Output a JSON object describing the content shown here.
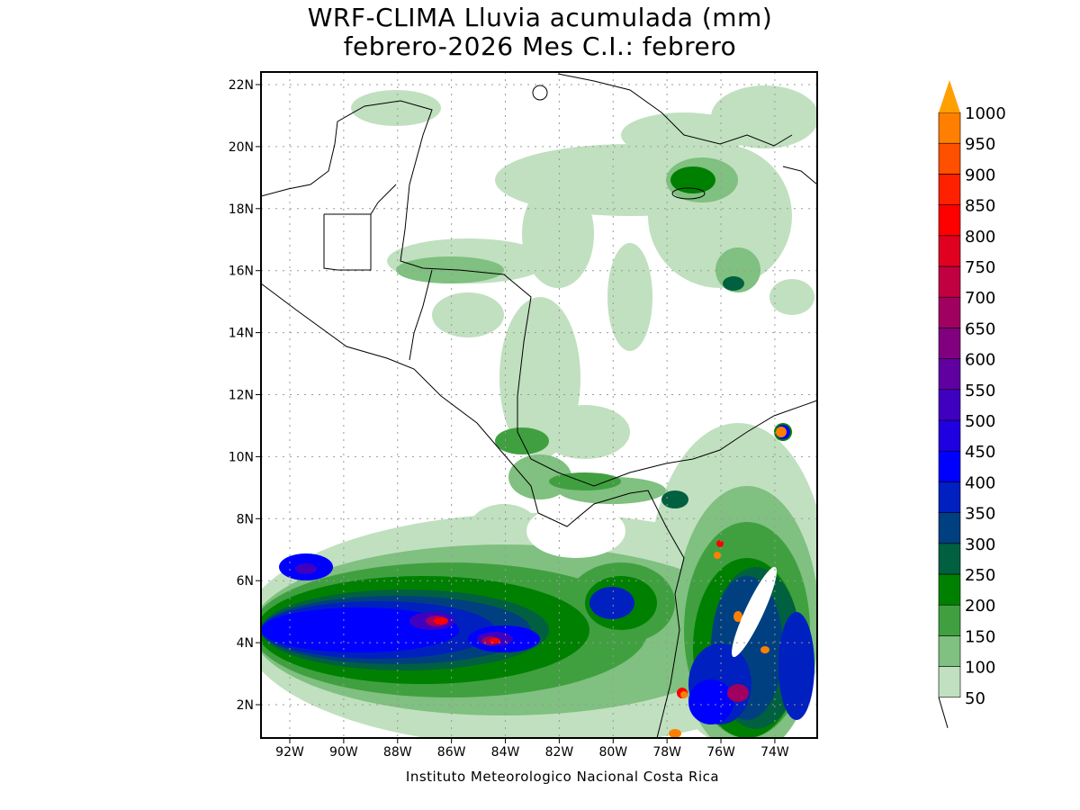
{
  "title": {
    "line1": "WRF-CLIMA Lluvia acumulada (mm)",
    "line2": "febrero-2026 Mes C.I.: febrero"
  },
  "credit": "Instituto Meteorologico Nacional Costa Rica",
  "axes": {
    "lat_labels": [
      "22N",
      "20N",
      "18N",
      "16N",
      "14N",
      "12N",
      "10N",
      "8N",
      "6N",
      "4N",
      "2N"
    ],
    "lon_labels": [
      "92W",
      "90W",
      "88W",
      "86W",
      "84W",
      "82W",
      "80W",
      "78W",
      "76W",
      "74W"
    ],
    "lat_range": [
      0.9,
      22.4
    ],
    "lon_range": [
      -93.1,
      -72.4
    ],
    "grid": "dotted"
  },
  "colorbar": {
    "levels": [
      "50",
      "100",
      "150",
      "200",
      "250",
      "300",
      "350",
      "400",
      "450",
      "500",
      "550",
      "600",
      "650",
      "700",
      "750",
      "800",
      "850",
      "900",
      "950",
      "1000"
    ],
    "colors": [
      "#c0e0c0",
      "#80c080",
      "#40a040",
      "#008000",
      "#006040",
      "#004080",
      "#0020c0",
      "#0000ff",
      "#2000e0",
      "#4000c0",
      "#6000a0",
      "#800080",
      "#a00060",
      "#c00040",
      "#e00020",
      "#ff0000",
      "#ff2000",
      "#ff5000",
      "#ff8000"
    ],
    "over_color": "#ffa000"
  }
}
